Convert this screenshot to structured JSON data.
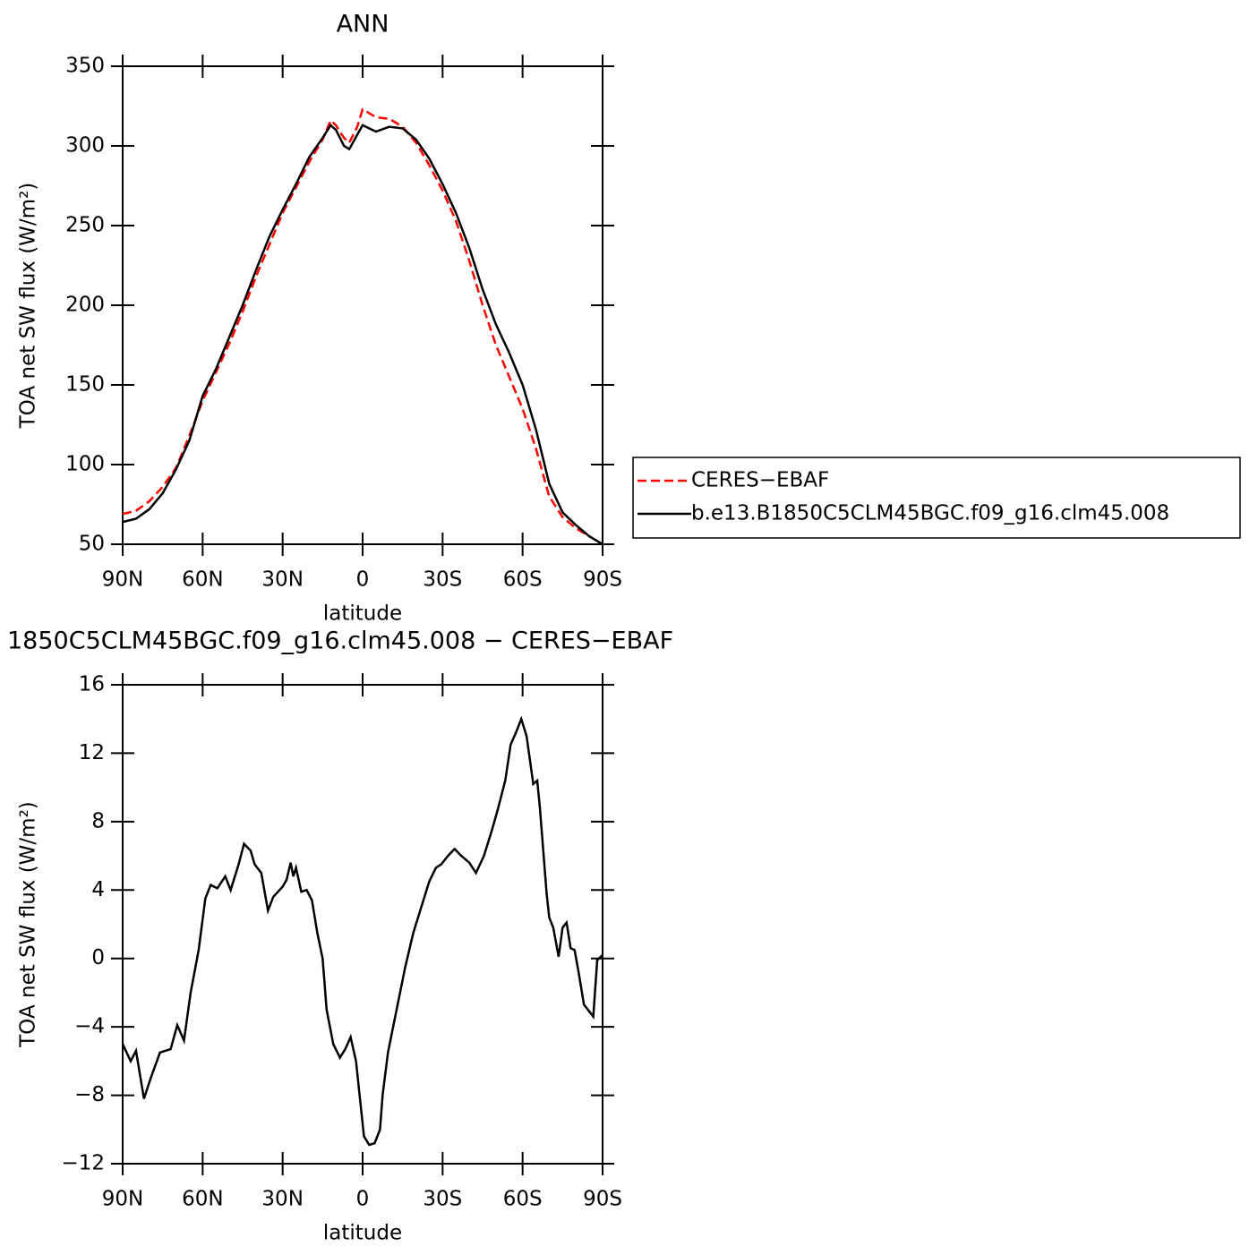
{
  "chart_data": [
    {
      "type": "line",
      "title": "ANN",
      "xlabel": "latitude",
      "ylabel": "TOA net SW flux (W/m²)",
      "x": [
        90,
        85,
        80,
        75,
        70,
        65,
        60,
        55,
        50,
        45,
        40,
        35,
        30,
        25,
        20,
        15,
        12,
        10,
        7,
        5,
        2,
        0,
        -5,
        -10,
        -15,
        -20,
        -25,
        -30,
        -35,
        -40,
        -45,
        -50,
        -55,
        -60,
        -65,
        -70,
        -75,
        -80,
        -85,
        -90
      ],
      "series": [
        {
          "name": "CERES−EBAF",
          "color": "#ff0000",
          "style": "dashed",
          "values": [
            69,
            71,
            77,
            86,
            98,
            118,
            140,
            158,
            176,
            196,
            218,
            238,
            258,
            274,
            290,
            304,
            316,
            313,
            305,
            302,
            312,
            323,
            318,
            317,
            312,
            302,
            288,
            272,
            253,
            228,
            200,
            175,
            155,
            135,
            110,
            80,
            67,
            60,
            55,
            50
          ]
        },
        {
          "name": "b.e13.B1850C5CLM45BGC.f09_g16.clm45.008",
          "color": "#000000",
          "style": "solid",
          "values": [
            64,
            66,
            72,
            82,
            97,
            115,
            143,
            160,
            180,
            200,
            222,
            243,
            260,
            276,
            293,
            305,
            313,
            310,
            300,
            298,
            307,
            313,
            309,
            312,
            311,
            304,
            292,
            276,
            258,
            236,
            210,
            188,
            170,
            150,
            122,
            88,
            70,
            62,
            55,
            50
          ]
        }
      ],
      "legend": "outside right",
      "xlim": [
        90,
        -90
      ],
      "xticks": [
        {
          "value": 90,
          "label": "90N"
        },
        {
          "value": 60,
          "label": "60N"
        },
        {
          "value": 30,
          "label": "30N"
        },
        0,
        {
          "value": -30,
          "label": "30S"
        },
        {
          "value": -60,
          "label": "60S"
        },
        {
          "value": -90,
          "label": "90S"
        }
      ],
      "ylim": [
        50,
        350
      ],
      "yticks": [
        50,
        100,
        150,
        200,
        250,
        300,
        350
      ]
    },
    {
      "type": "line",
      "title": "1850C5CLM45BGC.f09_g16.clm45.008 − CERES−EBAF",
      "xlabel": "latitude",
      "ylabel": "TOA net SW flux (W/m²)",
      "x": [
        90,
        87,
        85,
        82,
        79.5,
        76,
        72,
        69.5,
        67,
        64.5,
        61.5,
        59,
        57,
        54.5,
        51.5,
        49.5,
        46.5,
        44.5,
        42,
        40.5,
        38,
        35.5,
        33.5,
        30,
        28.5,
        27,
        26,
        25,
        23,
        21,
        19,
        17,
        15,
        13.5,
        11,
        8.5,
        6.5,
        4.5,
        2.5,
        -0.5,
        -2.5,
        -4.5,
        -6.5,
        -7.5,
        -9.5,
        -13,
        -16,
        -19,
        -22,
        -25,
        -27.5,
        -29.5,
        -32,
        -34.5,
        -37,
        -40,
        -42.5,
        -45.5,
        -48.5,
        -50.5,
        -53.5,
        -55.5,
        -57.5,
        -59.5,
        -61.5,
        -64,
        -65.5,
        -66.5,
        -69,
        -70,
        -71.5,
        -73.5,
        -75,
        -76.5,
        -78,
        -79.5,
        -81,
        -83,
        -86.5,
        -88,
        -90
      ],
      "series": [
        {
          "color": "#000000",
          "style": "solid",
          "values": [
            -5,
            -6,
            -5.4,
            -8.2,
            -7,
            -5.5,
            -5.3,
            -3.9,
            -4.8,
            -2,
            0.5,
            3.5,
            4.3,
            4.1,
            4.8,
            4.0,
            5.5,
            6.7,
            6.3,
            5.5,
            5.0,
            2.8,
            3.6,
            4.2,
            4.6,
            5.6,
            4.8,
            5.3,
            3.9,
            4.0,
            3.4,
            1.5,
            0,
            -3,
            -5,
            -5.8,
            -5.3,
            -4.6,
            -6,
            -10.4,
            -10.9,
            -10.8,
            -10,
            -8,
            -5.5,
            -2.8,
            -0.5,
            1.5,
            3,
            4.5,
            5.3,
            5.5,
            6.0,
            6.4,
            6.0,
            5.6,
            5.0,
            6.0,
            7.5,
            8.6,
            10.4,
            12.5,
            13.2,
            14.0,
            13,
            10.2,
            10.4,
            8.8,
            3.8,
            2.4,
            1.8,
            0.1,
            1.8,
            2.1,
            0.6,
            0.5,
            -0.8,
            -2.7,
            -3.4,
            -0.1,
            0.2
          ]
        }
      ],
      "xlim": [
        90,
        -90
      ],
      "xticks": [
        {
          "value": 90,
          "label": "90N"
        },
        {
          "value": 60,
          "label": "60N"
        },
        {
          "value": 30,
          "label": "30N"
        },
        0,
        {
          "value": -30,
          "label": "30S"
        },
        {
          "value": -60,
          "label": "60S"
        },
        {
          "value": -90,
          "label": "90S"
        }
      ],
      "ylim": [
        -12,
        16
      ],
      "yticks": [
        {
          "value": -12,
          "label": "−12"
        },
        {
          "value": -8,
          "label": "−8"
        },
        {
          "value": -4,
          "label": "−4"
        },
        0,
        4,
        8,
        12,
        16
      ]
    }
  ]
}
